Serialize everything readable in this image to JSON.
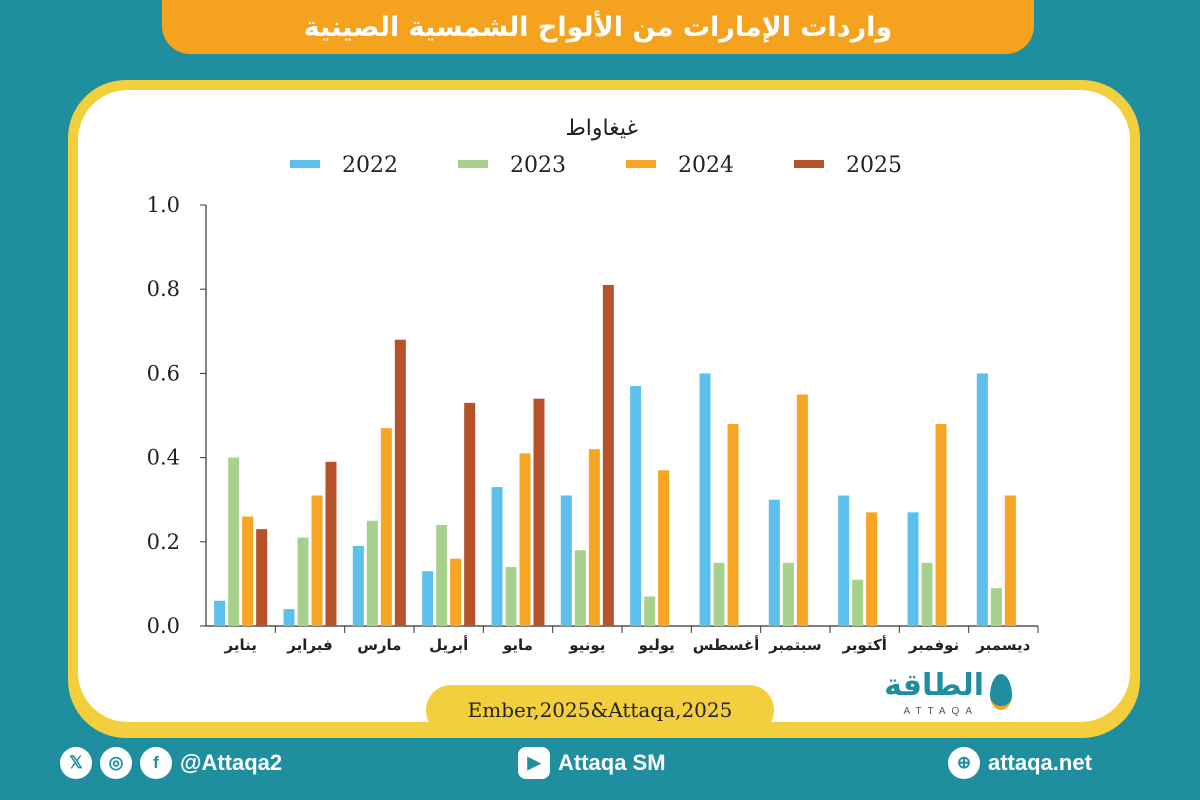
{
  "header": {
    "title": "واردات الإمارات من الألواح الشمسية الصينية"
  },
  "source": {
    "text": "Ember,2025&Attaqa,2025"
  },
  "logo": {
    "text": "الطاقة",
    "sub": "ATTAQA"
  },
  "footer": {
    "social_handle": "@Attaqa2",
    "youtube": "Attaqa SM",
    "website": "attaqa.net"
  },
  "colors": {
    "teal": "#1f8fa0",
    "orange": "#f5a21f",
    "yellow": "#f3cf3d",
    "s2022": "#5bc0eb",
    "s2023": "#a8d08d",
    "s2024": "#f6a623",
    "s2025": "#b5522a"
  },
  "chart_data": {
    "type": "bar",
    "ylabel": "غيغاواط",
    "ylim": [
      0,
      1.0
    ],
    "yticks": [
      "0.0",
      "0.2",
      "0.4",
      "0.6",
      "0.8",
      "1.0"
    ],
    "legend_position": "top",
    "categories": [
      "يناير",
      "فبراير",
      "مارس",
      "أبريل",
      "مايو",
      "يونيو",
      "يوليو",
      "أغسطس",
      "سبتمبر",
      "أكتوبر",
      "نوفمبر",
      "ديسمبر"
    ],
    "series": [
      {
        "name": "2022",
        "color": "#5bc0eb",
        "values": [
          0.06,
          0.04,
          0.19,
          0.13,
          0.33,
          0.31,
          0.57,
          0.6,
          0.3,
          0.31,
          0.27,
          0.6
        ]
      },
      {
        "name": "2023",
        "color": "#a8d08d",
        "values": [
          0.4,
          0.21,
          0.25,
          0.24,
          0.14,
          0.18,
          0.07,
          0.15,
          0.15,
          0.11,
          0.15,
          0.09
        ]
      },
      {
        "name": "2024",
        "color": "#f6a623",
        "values": [
          0.26,
          0.31,
          0.47,
          0.16,
          0.41,
          0.42,
          0.37,
          0.48,
          0.55,
          0.27,
          0.48,
          0.31
        ]
      },
      {
        "name": "2025",
        "color": "#b5522a",
        "values": [
          0.23,
          0.39,
          0.68,
          0.53,
          0.54,
          0.81,
          null,
          null,
          null,
          null,
          null,
          null
        ]
      }
    ]
  }
}
